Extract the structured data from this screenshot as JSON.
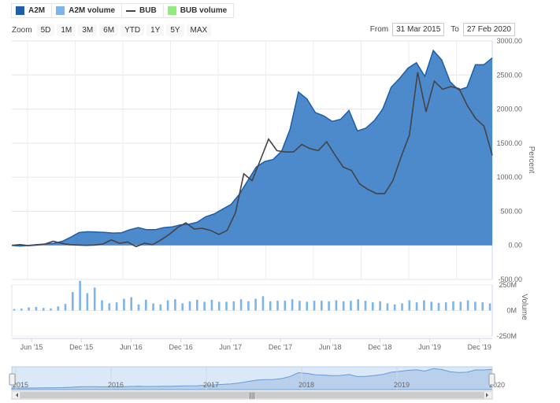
{
  "legend": [
    {
      "label": "A2M",
      "color": "#1f5ea8",
      "kind": "box"
    },
    {
      "label": "A2M volume",
      "color": "#7cb5ec",
      "kind": "box"
    },
    {
      "label": "BUB",
      "color": "#434348",
      "kind": "line"
    },
    {
      "label": "BUB volume",
      "color": "#90ed7d",
      "kind": "box"
    }
  ],
  "zoom": {
    "label": "Zoom",
    "buttons": [
      "5D",
      "1M",
      "3M",
      "6M",
      "YTD",
      "1Y",
      "5Y",
      "MAX"
    ]
  },
  "range": {
    "from_label": "From",
    "from_value": "31 Mar 2015",
    "to_label": "To",
    "to_value": "27 Feb 2020"
  },
  "navigator": {
    "year_labels": [
      "2015",
      "2016",
      "2017",
      "2018",
      "2019",
      "2020"
    ],
    "scrollbar_grip": "|||"
  },
  "chart_data": {
    "type": "area",
    "ylabel": "Percent",
    "ylim": [
      -500,
      3000
    ],
    "y_ticks": [
      -500,
      0,
      500,
      1000,
      1500,
      2000,
      2500,
      3000
    ],
    "y_tick_labels": [
      "-500.00",
      "0.00",
      "500.00",
      "1000.00",
      "1500.00",
      "2000.00",
      "2500.00",
      "3000.00"
    ],
    "x_tick_labels": [
      "Jun '15",
      "Dec '15",
      "Jun '16",
      "Dec '16",
      "Jun '17",
      "Dec '17",
      "Jun '18",
      "Dec '18",
      "Jun '19",
      "Dec '19"
    ],
    "grid": true,
    "series": [
      {
        "name": "A2M",
        "type": "area",
        "color": "#4384c9",
        "line_color": "#1f5ea8",
        "values": [
          0,
          -10,
          0,
          10,
          20,
          30,
          60,
          120,
          190,
          200,
          195,
          190,
          180,
          185,
          230,
          260,
          230,
          230,
          260,
          270,
          300,
          310,
          340,
          420,
          460,
          530,
          600,
          750,
          950,
          1150,
          1230,
          1260,
          1380,
          1700,
          2250,
          2150,
          1950,
          1900,
          1820,
          1850,
          1980,
          1680,
          1720,
          1830,
          2000,
          2320,
          2450,
          2600,
          2680,
          2480,
          2860,
          2720,
          2400,
          2280,
          2320,
          2650,
          2650,
          2750
        ]
      },
      {
        "name": "BUB",
        "type": "line",
        "color": "#434348",
        "values": [
          0,
          10,
          -5,
          5,
          20,
          60,
          30,
          10,
          5,
          0,
          5,
          20,
          80,
          30,
          50,
          -20,
          30,
          10,
          80,
          160,
          260,
          330,
          240,
          250,
          220,
          160,
          220,
          480,
          1050,
          950,
          1250,
          1560,
          1390,
          1370,
          1370,
          1480,
          1420,
          1390,
          1520,
          1330,
          1150,
          1100,
          900,
          820,
          760,
          760,
          950,
          1300,
          1620,
          2540,
          1960,
          2410,
          2290,
          2330,
          2300,
          2050,
          1860,
          1750,
          1320
        ]
      }
    ],
    "volume": {
      "name": "A2M volume",
      "color": "#7cb5ec",
      "ylim": [
        -250,
        250
      ],
      "y_tick_labels": [
        "250M",
        "0M",
        "-250M"
      ],
      "axis_title": "Volume",
      "values": [
        15,
        20,
        30,
        35,
        25,
        20,
        40,
        65,
        180,
        290,
        170,
        225,
        100,
        70,
        80,
        115,
        130,
        60,
        105,
        70,
        60,
        100,
        110,
        70,
        90,
        105,
        85,
        105,
        85,
        85,
        90,
        110,
        90,
        115,
        140,
        90,
        95,
        95,
        110,
        95,
        85,
        95,
        95,
        90,
        100,
        90,
        95,
        110,
        95,
        80,
        90,
        70,
        60,
        70,
        100,
        80,
        100,
        85,
        75,
        80,
        90,
        85,
        100,
        85,
        80,
        70
      ]
    }
  }
}
